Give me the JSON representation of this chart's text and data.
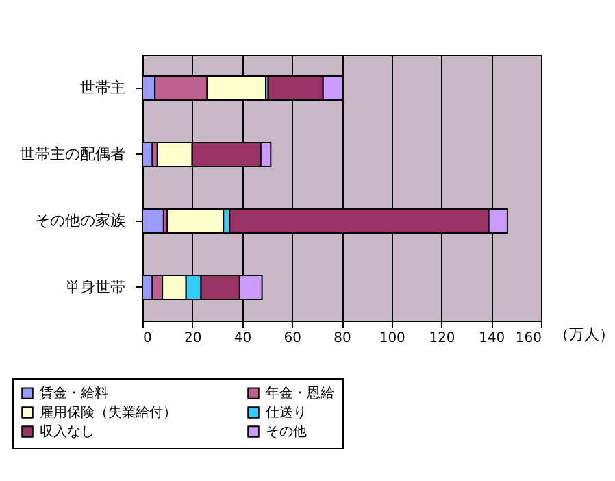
{
  "chart_data": {
    "type": "bar",
    "orientation": "horizontal",
    "stacked": true,
    "categories": [
      "世帯主",
      "世帯主の配偶者",
      "その他の家族",
      "単身世帯"
    ],
    "series": [
      {
        "name": "賃金・給料",
        "color": "#9999ff",
        "values": [
          5,
          4,
          8.5,
          4
        ]
      },
      {
        "name": "年金・恩給",
        "color": "#c06090",
        "values": [
          21,
          2,
          1.5,
          4
        ]
      },
      {
        "name": "雇用保険（失業給付）",
        "color": "#ffffcc",
        "values": [
          23.5,
          14,
          22.5,
          9.5
        ]
      },
      {
        "name": "仕送り",
        "color": "#33ccff",
        "values": [
          1,
          0,
          2.5,
          6
        ]
      },
      {
        "name": "収入なし",
        "color": "#993366",
        "values": [
          22,
          27.5,
          104,
          15.5
        ]
      },
      {
        "name": "その他",
        "color": "#cc99ff",
        "values": [
          8,
          4,
          7.5,
          9
        ]
      }
    ],
    "xlabel": "（万人）",
    "xlim": [
      0,
      160
    ],
    "xticks": [
      0,
      20,
      40,
      60,
      80,
      100,
      120,
      140,
      160
    ],
    "grid": "x",
    "legend": "bottom"
  }
}
